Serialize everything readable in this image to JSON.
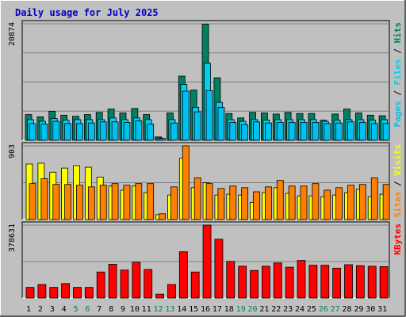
{
  "title": "Daily usage for July 2025",
  "colors": {
    "frame_bg": "#C0C0C0",
    "plot_bg": "#C0C0C0",
    "title": "#0000C0",
    "hits": "#008060",
    "files": "#00D0F0",
    "pages": "#00C0F0",
    "visits": "#FFFF00",
    "sites": "#FF8000",
    "kbytes": "#FF0000",
    "weekend_day": "#008060",
    "weekday": "#000000"
  },
  "chart_data": [
    {
      "type": "bar",
      "panel": "hits-files-pages",
      "ylabel_parts": [
        "Pages",
        "Files",
        "Hits"
      ],
      "max_label": "20874",
      "ylim": [
        0,
        20874
      ],
      "categories": [
        "1",
        "2",
        "3",
        "4",
        "5",
        "6",
        "7",
        "8",
        "9",
        "10",
        "11",
        "12",
        "13",
        "14",
        "15",
        "16",
        "17",
        "18",
        "19",
        "20",
        "21",
        "22",
        "23",
        "24",
        "25",
        "26",
        "27",
        "28",
        "29",
        "30",
        "31"
      ],
      "series": [
        {
          "name": "Hits",
          "color_key": "hits",
          "values": [
            4600,
            4200,
            5200,
            4500,
            4300,
            4600,
            5000,
            5600,
            4900,
            5700,
            4600,
            600,
            4900,
            11500,
            9000,
            20800,
            11200,
            4800,
            4000,
            5000,
            4900,
            4700,
            5000,
            4800,
            4800,
            3600,
            4700,
            5600,
            4900,
            4500,
            4400
          ]
        },
        {
          "name": "Files",
          "color_key": "files",
          "values": [
            3700,
            3400,
            3900,
            3600,
            3700,
            3700,
            3700,
            4000,
            3700,
            4000,
            3700,
            400,
            3700,
            10000,
            5900,
            13800,
            6800,
            3700,
            3400,
            3700,
            3600,
            3700,
            3700,
            3700,
            3700,
            3400,
            3600,
            3700,
            3700,
            3600,
            3700
          ]
        },
        {
          "name": "Pages",
          "color_key": "pages",
          "values": [
            3000,
            2900,
            3400,
            3000,
            3000,
            3100,
            3300,
            3300,
            3200,
            3500,
            2900,
            300,
            3100,
            8800,
            5100,
            8900,
            5900,
            3200,
            2800,
            3300,
            3100,
            3200,
            3200,
            3200,
            3200,
            3000,
            3100,
            3300,
            3200,
            3000,
            3000
          ]
        }
      ]
    },
    {
      "type": "bar",
      "panel": "visits-sites",
      "ylabel_parts": [
        "Sites",
        "Visits"
      ],
      "max_label": "903",
      "ylim": [
        0,
        903
      ],
      "categories": [
        "1",
        "2",
        "3",
        "4",
        "5",
        "6",
        "7",
        "8",
        "9",
        "10",
        "11",
        "12",
        "13",
        "14",
        "15",
        "16",
        "17",
        "18",
        "19",
        "20",
        "21",
        "22",
        "23",
        "24",
        "25",
        "26",
        "27",
        "28",
        "29",
        "30",
        "31"
      ],
      "series": [
        {
          "name": "Visits",
          "color_key": "visits",
          "values": [
            680,
            690,
            580,
            630,
            660,
            640,
            520,
            410,
            360,
            410,
            330,
            60,
            300,
            750,
            390,
            450,
            300,
            310,
            300,
            210,
            330,
            390,
            320,
            290,
            290,
            280,
            300,
            330,
            370,
            280,
            310
          ]
        },
        {
          "name": "Sites",
          "color_key": "sites",
          "values": [
            440,
            500,
            430,
            430,
            420,
            400,
            420,
            440,
            420,
            440,
            440,
            70,
            400,
            903,
            510,
            440,
            380,
            410,
            390,
            340,
            400,
            480,
            410,
            410,
            440,
            360,
            390,
            420,
            430,
            510,
            430
          ]
        }
      ]
    },
    {
      "type": "bar",
      "panel": "kbytes",
      "ylabel_parts": [
        "KBytes"
      ],
      "max_label": "378631",
      "ylim": [
        0,
        378631
      ],
      "categories": [
        "1",
        "2",
        "3",
        "4",
        "5",
        "6",
        "7",
        "8",
        "9",
        "10",
        "11",
        "12",
        "13",
        "14",
        "15",
        "16",
        "17",
        "18",
        "19",
        "20",
        "21",
        "22",
        "23",
        "24",
        "25",
        "26",
        "27",
        "28",
        "29",
        "30",
        "31"
      ],
      "series": [
        {
          "name": "KBytes",
          "color_key": "kbytes",
          "values": [
            55000,
            70000,
            55000,
            75000,
            55000,
            55000,
            135000,
            175000,
            145000,
            185000,
            148000,
            20000,
            70000,
            240000,
            135000,
            378631,
            305000,
            190000,
            165000,
            143000,
            165000,
            182000,
            160000,
            195000,
            170000,
            170000,
            155000,
            173000,
            168000,
            165000,
            163000
          ]
        }
      ]
    }
  ],
  "weekend_days": [
    "5",
    "6",
    "12",
    "13",
    "19",
    "20",
    "26",
    "27"
  ]
}
